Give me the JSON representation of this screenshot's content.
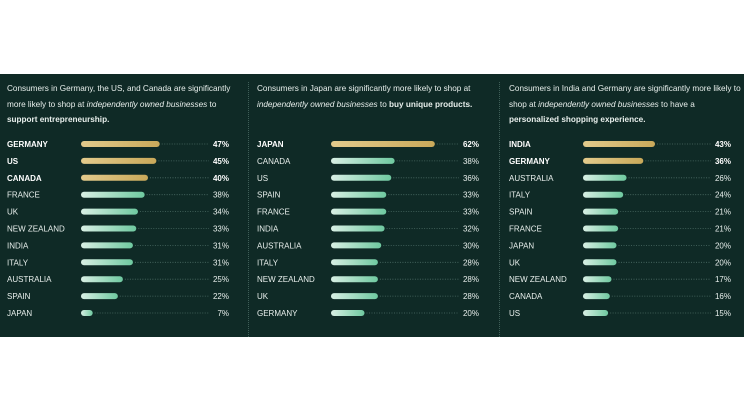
{
  "colors": {
    "background": "#0f2a26",
    "highlight_bar": "#c9a95a",
    "normal_bar": "#6fc9a0",
    "text": "#e8efec",
    "leader": "#4d6d66"
  },
  "panels": [
    {
      "caption": {
        "pre": "Consumers in Germany, the US, and Canada are significantly more likely to shop at ",
        "italic": "independently owned businesses",
        "mid": " to ",
        "bold": "support entrepreneurship."
      }
    },
    {
      "caption": {
        "pre": "Consumers in Japan are significantly more likely to shop at ",
        "italic": "independently owned businesses",
        "mid": " to ",
        "bold": "buy unique products."
      }
    },
    {
      "caption": {
        "pre": "Consumers in India and Germany are significantly more likely to shop at ",
        "italic": "independently owned businesses",
        "mid": " to have a ",
        "bold": "personalized shopping experience."
      }
    }
  ],
  "chart_data": [
    {
      "type": "bar",
      "categories": [
        "GERMANY",
        "US",
        "CANADA",
        "FRANCE",
        "UK",
        "NEW ZEALAND",
        "INDIA",
        "ITALY",
        "AUSTRALIA",
        "SPAIN",
        "JAPAN"
      ],
      "values": [
        47,
        45,
        40,
        38,
        34,
        33,
        31,
        31,
        25,
        22,
        7
      ],
      "value_labels": [
        "47%",
        "45%",
        "40%",
        "38%",
        "34%",
        "33%",
        "31%",
        "31%",
        "25%",
        "22%",
        "7%"
      ],
      "highlighted": [
        "GERMANY",
        "US",
        "CANADA"
      ],
      "unit": "%"
    },
    {
      "type": "bar",
      "categories": [
        "JAPAN",
        "CANADA",
        "US",
        "SPAIN",
        "FRANCE",
        "INDIA",
        "AUSTRALIA",
        "ITALY",
        "NEW ZEALAND",
        "UK",
        "GERMANY"
      ],
      "values": [
        62,
        38,
        36,
        33,
        33,
        32,
        30,
        28,
        28,
        28,
        20
      ],
      "value_labels": [
        "62%",
        "38%",
        "36%",
        "33%",
        "33%",
        "32%",
        "30%",
        "28%",
        "28%",
        "28%",
        "20%"
      ],
      "highlighted": [
        "JAPAN"
      ],
      "unit": "%"
    },
    {
      "type": "bar",
      "categories": [
        "INDIA",
        "GERMANY",
        "AUSTRALIA",
        "ITALY",
        "SPAIN",
        "FRANCE",
        "JAPAN",
        "UK",
        "NEW ZEALAND",
        "CANADA",
        "US"
      ],
      "values": [
        43,
        36,
        26,
        24,
        21,
        21,
        20,
        20,
        17,
        16,
        15
      ],
      "value_labels": [
        "43%",
        "36%",
        "26%",
        "24%",
        "21%",
        "21%",
        "20%",
        "20%",
        "17%",
        "16%",
        "15%"
      ],
      "highlighted": [
        "INDIA",
        "GERMANY"
      ],
      "unit": "%"
    }
  ]
}
